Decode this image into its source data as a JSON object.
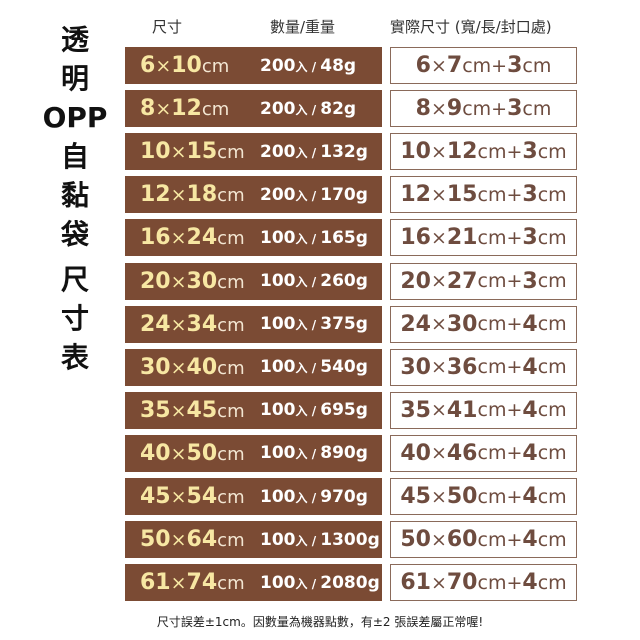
{
  "title_lines": [
    "透",
    "明",
    "OPP",
    "自",
    "黏",
    "袋",
    "尺",
    "寸",
    "表"
  ],
  "headers": {
    "size": "尺寸",
    "qty_weight": "數量/重量",
    "actual": "實際尺寸 (寬/長/封口處)"
  },
  "colors": {
    "brown": "#7b4b34",
    "size_number": "#f7e7a3",
    "actual_text": "#6e4c3f"
  },
  "rows": [
    {
      "w": "6",
      "h": "10",
      "unit": "cm",
      "qty": "200",
      "pcs": "入",
      "weight": "48g",
      "aw": "6",
      "al": "7",
      "seal": "3"
    },
    {
      "w": "8",
      "h": "12",
      "unit": "cm",
      "qty": "200",
      "pcs": "入",
      "weight": "82g",
      "aw": "8",
      "al": "9",
      "seal": "3"
    },
    {
      "w": "10",
      "h": "15",
      "unit": "cm",
      "qty": "200",
      "pcs": "入",
      "weight": "132g",
      "aw": "10",
      "al": "12",
      "seal": "3"
    },
    {
      "w": "12",
      "h": "18",
      "unit": "cm",
      "qty": "200",
      "pcs": "入",
      "weight": "170g",
      "aw": "12",
      "al": "15",
      "seal": "3"
    },
    {
      "w": "16",
      "h": "24",
      "unit": "cm",
      "qty": "100",
      "pcs": "入",
      "weight": "165g",
      "aw": "16",
      "al": "21",
      "seal": "3"
    },
    {
      "w": "20",
      "h": "30",
      "unit": "cm",
      "qty": "100",
      "pcs": "入",
      "weight": "260g",
      "aw": "20",
      "al": "27",
      "seal": "3"
    },
    {
      "w": "24",
      "h": "34",
      "unit": "cm",
      "qty": "100",
      "pcs": "入",
      "weight": "375g",
      "aw": "24",
      "al": "30",
      "seal": "4"
    },
    {
      "w": "30",
      "h": "40",
      "unit": "cm",
      "qty": "100",
      "pcs": "入",
      "weight": "540g",
      "aw": "30",
      "al": "36",
      "seal": "4"
    },
    {
      "w": "35",
      "h": "45",
      "unit": "cm",
      "qty": "100",
      "pcs": "入",
      "weight": "695g",
      "aw": "35",
      "al": "41",
      "seal": "4"
    },
    {
      "w": "40",
      "h": "50",
      "unit": "cm",
      "qty": "100",
      "pcs": "入",
      "weight": "890g",
      "aw": "40",
      "al": "46",
      "seal": "4"
    },
    {
      "w": "45",
      "h": "54",
      "unit": "cm",
      "qty": "100",
      "pcs": "入",
      "weight": "970g",
      "aw": "45",
      "al": "50",
      "seal": "4"
    },
    {
      "w": "50",
      "h": "64",
      "unit": "cm",
      "qty": "100",
      "pcs": "入",
      "weight": "1300g",
      "aw": "50",
      "al": "60",
      "seal": "4"
    },
    {
      "w": "61",
      "h": "74",
      "unit": "cm",
      "qty": "100",
      "pcs": "入",
      "weight": "2080g",
      "aw": "61",
      "al": "70",
      "seal": "4"
    }
  ],
  "note": "尺寸誤差±1cm。因數量為機器點數，有±2 張誤差屬正常喔!"
}
